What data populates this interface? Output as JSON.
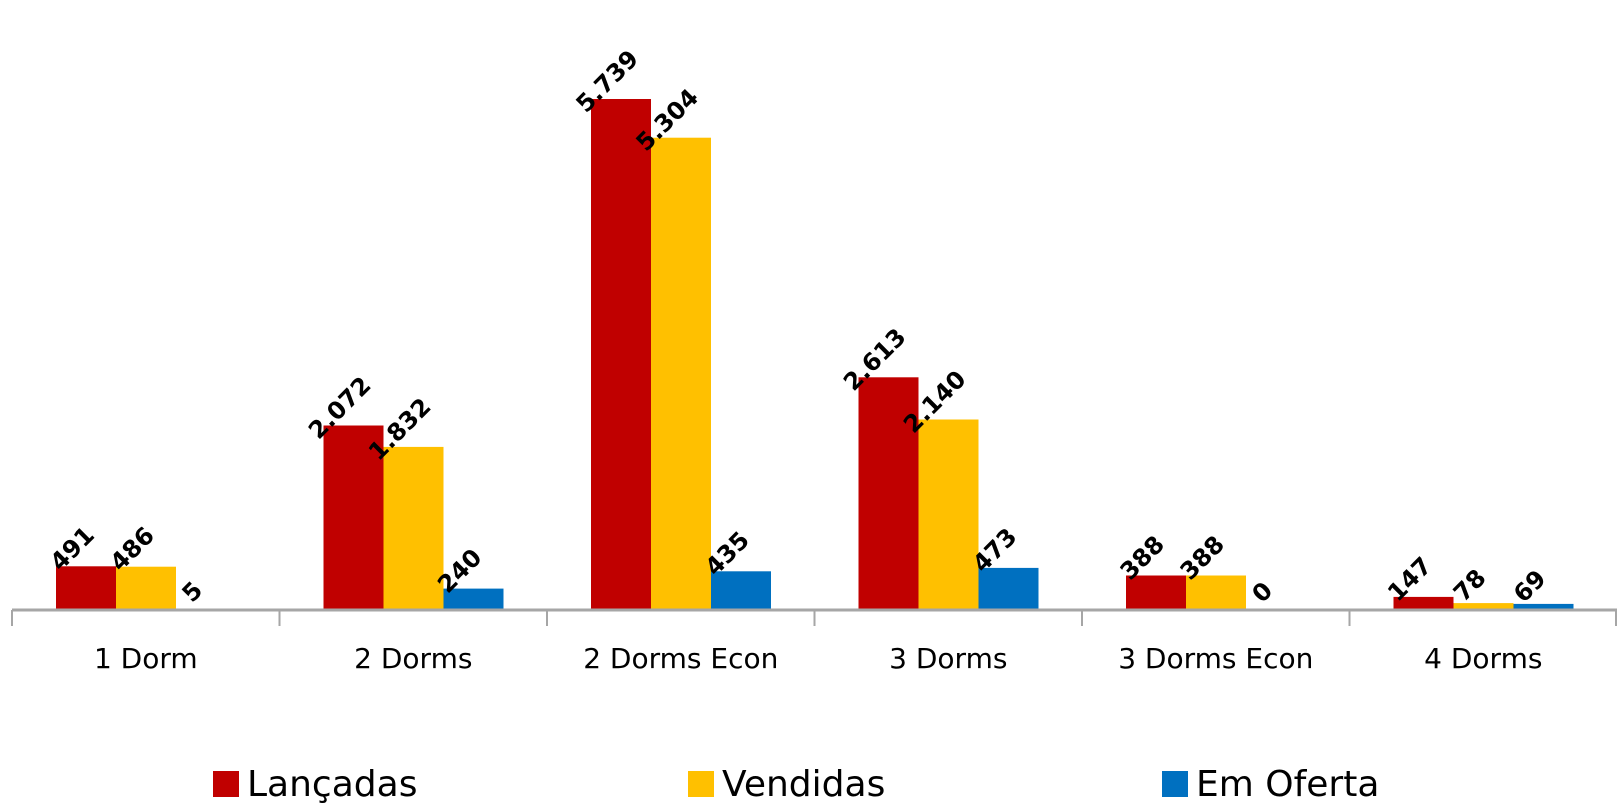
{
  "chart_data": {
    "type": "bar",
    "categories": [
      "1 Dorm",
      "2 Dorms",
      "2 Dorms Econ",
      "3 Dorms",
      "3 Dorms Econ",
      "4 Dorms"
    ],
    "series": [
      {
        "name": "Lançadas",
        "color": "#C00000",
        "values": [
          491,
          2072,
          5739,
          2613,
          388,
          147
        ],
        "labels": [
          "491",
          "2.072",
          "5.739",
          "2.613",
          "388",
          "147"
        ]
      },
      {
        "name": "Vendidas",
        "color": "#FFC000",
        "values": [
          486,
          1832,
          5304,
          2140,
          388,
          78
        ],
        "labels": [
          "486",
          "1.832",
          "5.304",
          "2.140",
          "388",
          "78"
        ]
      },
      {
        "name": "Em Oferta",
        "color": "#0070C0",
        "values": [
          5,
          240,
          435,
          473,
          0,
          69
        ],
        "labels": [
          "5",
          "240",
          "435",
          "473",
          "0",
          "69"
        ]
      }
    ],
    "title": "",
    "xlabel": "",
    "ylabel": "",
    "grid": false,
    "legend_position": "bottom",
    "axis_color": "#A6A6A6"
  }
}
